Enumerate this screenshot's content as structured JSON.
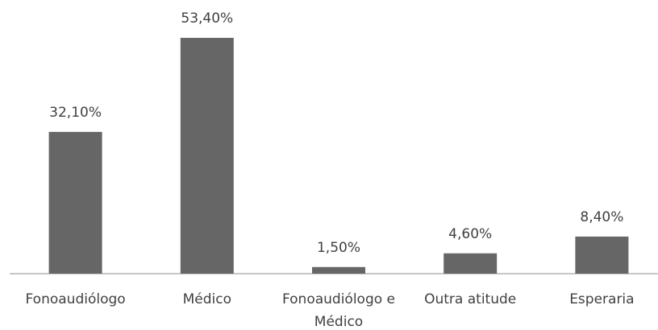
{
  "chart_data": {
    "type": "bar",
    "categories": [
      "Fonoaudiólogo",
      "Médico",
      "Fonoaudiólogo e Médico",
      "Outra atitude",
      "Esperaria"
    ],
    "values": [
      32.1,
      53.4,
      1.5,
      4.6,
      8.4
    ],
    "value_labels": [
      "32,10%",
      "53,40%",
      "1,50%",
      "4,60%",
      "8,40%"
    ],
    "color": "#666666"
  }
}
